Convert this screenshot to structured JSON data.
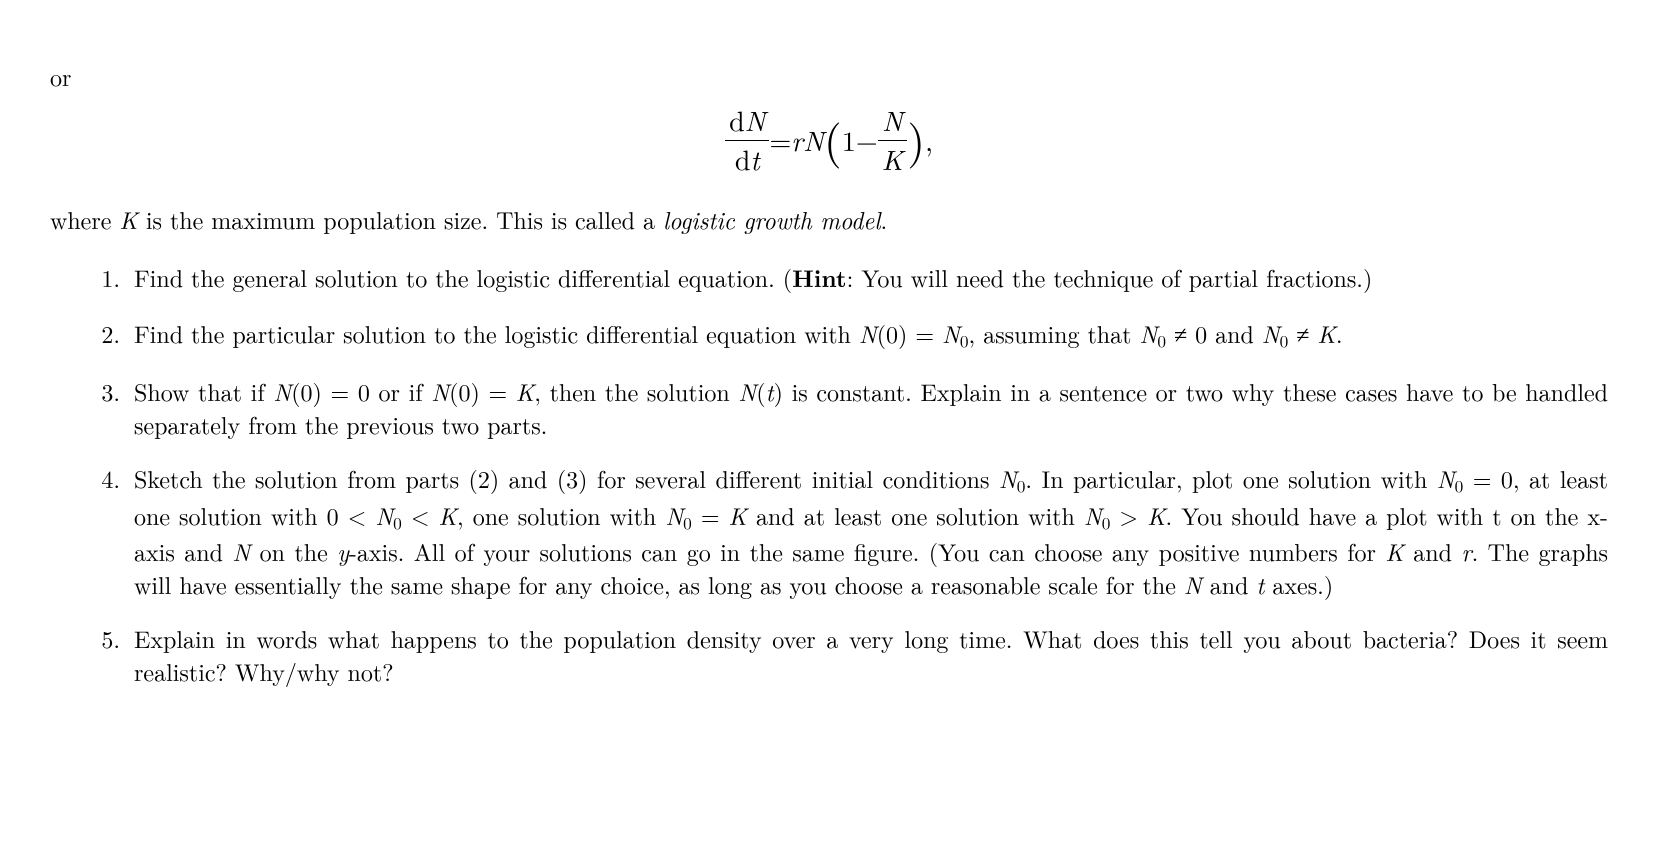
{
  "intro": {
    "or": "or",
    "equation": {
      "lhs_num_d": "d",
      "lhs_num_N": "N",
      "lhs_den_d": "d",
      "lhs_den_t": "t",
      "eq": " = ",
      "r": "r",
      "N1": "N",
      "lp": "(",
      "one": "1",
      "minus": " − ",
      "frac2_num": "N",
      "frac2_den": "K",
      "rp": ")",
      "comma": ","
    },
    "desc_pre": "where ",
    "desc_K": "K",
    "desc_mid": " is the maximum population size. This is called a ",
    "desc_term": "logistic growth model",
    "desc_post": "."
  },
  "items": {
    "q1": {
      "t1": "Find the general solution to the logistic differential equation. (",
      "hint_label": "Hint",
      "t2": ": You will need the technique of partial fractions.)"
    },
    "q2": {
      "t1": "Find the particular solution to the logistic differential equation with ",
      "m1a": "N",
      "m1b": "(0) = ",
      "m1c": "N",
      "m1sub": "0",
      "t2": ", assuming that ",
      "m2a": "N",
      "m2sub": "0",
      "m2b": " ≠ 0",
      "t3": " and ",
      "m3a": "N",
      "m3sub": "0",
      "m3b": " ≠ ",
      "m3c": "K",
      "t4": "."
    },
    "q3": {
      "t1": "Show that if ",
      "m1": "N",
      "m1b": "(0) = 0",
      "t2": " or if ",
      "m2": "N",
      "m2b": "(0) = ",
      "m2c": "K",
      "t3": ", then the solution ",
      "m3": "N",
      "m3b": "(",
      "m3c": "t",
      "m3d": ")",
      "t4": " is constant. Explain in a sentence or two why these cases have to be handled separately from the previous two parts."
    },
    "q4": {
      "t1": "Sketch the solution from parts (2) and (3) for several different initial conditions ",
      "m1a": "N",
      "m1sub": "0",
      "t2": ". In particular, plot one solution with ",
      "m2a": "N",
      "m2sub": "0",
      "m2b": " = 0",
      "t3": ", at least one solution with ",
      "m3a": "0 < ",
      "m3b": "N",
      "m3sub": "0",
      "m3c": " < ",
      "m3d": "K",
      "t4": ", one solution with ",
      "m4a": "N",
      "m4sub": "0",
      "m4b": " = ",
      "m4c": "K",
      "t5": " and at least one solution with ",
      "m5a": "N",
      "m5sub": "0",
      "m5b": " > ",
      "m5c": "K",
      "t6": ". You should have a plot with t on the x-axis and ",
      "m6": "N",
      "t7": " on the ",
      "m7": "y",
      "t8": "-axis. All of your solutions can go in the same figure. (You can choose any positive numbers for ",
      "m8": "K",
      "t9": " and ",
      "m9": "r",
      "t10": ". The graphs will have essentially the same shape for any choice, as long as you choose a reasonable scale for the ",
      "m10": "N",
      "t11": " and ",
      "m11": "t",
      "t12": " axes.)"
    },
    "q5": {
      "t1": "Explain in words what happens to the population density over a very long time. What does this tell you about bacteria? Does it seem realistic? Why/why not?"
    }
  }
}
